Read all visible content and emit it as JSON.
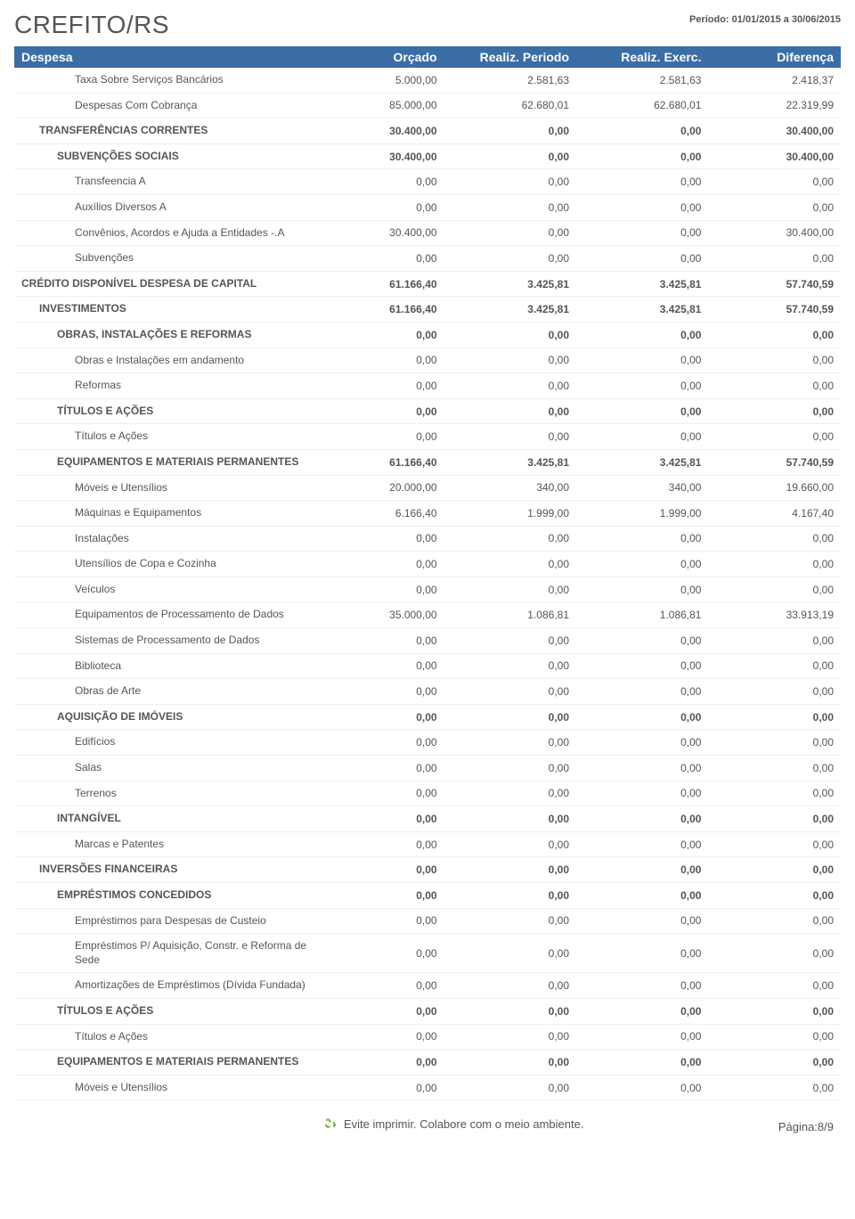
{
  "header": {
    "org": "CREFITO/RS",
    "period": "Período: 01/01/2015 a 30/06/2015"
  },
  "table": {
    "columns": [
      "Despesa",
      "Orçado",
      "Realiz. Periodo",
      "Realiz. Exerc.",
      "Diferença"
    ],
    "rows": [
      {
        "level": 3,
        "label": "Taxa Sobre Serviços Bancários",
        "orc": "5.000,00",
        "per": "2.581,63",
        "exc": "2.581,63",
        "dif": "2.418,37"
      },
      {
        "level": 3,
        "label": "Despesas Com Cobrança",
        "orc": "85.000,00",
        "per": "62.680,01",
        "exc": "62.680,01",
        "dif": "22.319,99"
      },
      {
        "level": 1,
        "label": "TRANSFERÊNCIAS CORRENTES",
        "orc": "30.400,00",
        "per": "0,00",
        "exc": "0,00",
        "dif": "30.400,00"
      },
      {
        "level": 2,
        "label": "SUBVENÇÕES SOCIAIS",
        "orc": "30.400,00",
        "per": "0,00",
        "exc": "0,00",
        "dif": "30.400,00"
      },
      {
        "level": 3,
        "label": "Transfeencia A",
        "orc": "0,00",
        "per": "0,00",
        "exc": "0,00",
        "dif": "0,00"
      },
      {
        "level": 3,
        "label": "Auxílios Diversos A",
        "orc": "0,00",
        "per": "0,00",
        "exc": "0,00",
        "dif": "0,00"
      },
      {
        "level": 3,
        "label": "Convênios, Acordos e Ajuda a Entidades -.A",
        "orc": "30.400,00",
        "per": "0,00",
        "exc": "0,00",
        "dif": "30.400,00"
      },
      {
        "level": 3,
        "label": "Subvenções",
        "orc": "0,00",
        "per": "0,00",
        "exc": "0,00",
        "dif": "0,00"
      },
      {
        "level": 0,
        "label": "CRÉDITO DISPONÍVEL DESPESA DE CAPITAL",
        "orc": "61.166,40",
        "per": "3.425,81",
        "exc": "3.425,81",
        "dif": "57.740,59"
      },
      {
        "level": 1,
        "label": "INVESTIMENTOS",
        "orc": "61.166,40",
        "per": "3.425,81",
        "exc": "3.425,81",
        "dif": "57.740,59"
      },
      {
        "level": 2,
        "label": "OBRAS, INSTALAÇÕES E REFORMAS",
        "orc": "0,00",
        "per": "0,00",
        "exc": "0,00",
        "dif": "0,00"
      },
      {
        "level": 3,
        "label": "Obras e Instalações em andamento",
        "orc": "0,00",
        "per": "0,00",
        "exc": "0,00",
        "dif": "0,00"
      },
      {
        "level": 3,
        "label": "Reformas",
        "orc": "0,00",
        "per": "0,00",
        "exc": "0,00",
        "dif": "0,00"
      },
      {
        "level": 2,
        "label": "TÍTULOS E AÇÕES",
        "orc": "0,00",
        "per": "0,00",
        "exc": "0,00",
        "dif": "0,00"
      },
      {
        "level": 3,
        "label": "Títulos e Ações",
        "orc": "0,00",
        "per": "0,00",
        "exc": "0,00",
        "dif": "0,00"
      },
      {
        "level": 2,
        "label": "EQUIPAMENTOS E MATERIAIS PERMANENTES",
        "orc": "61.166,40",
        "per": "3.425,81",
        "exc": "3.425,81",
        "dif": "57.740,59"
      },
      {
        "level": 3,
        "label": "Móveis e Utensílios",
        "orc": "20.000,00",
        "per": "340,00",
        "exc": "340,00",
        "dif": "19.660,00"
      },
      {
        "level": 3,
        "label": "Máquinas e Equipamentos",
        "orc": "6.166,40",
        "per": "1.999,00",
        "exc": "1.999,00",
        "dif": "4.167,40"
      },
      {
        "level": 3,
        "label": "Instalações",
        "orc": "0,00",
        "per": "0,00",
        "exc": "0,00",
        "dif": "0,00"
      },
      {
        "level": 3,
        "label": "Utensílios de Copa e Cozinha",
        "orc": "0,00",
        "per": "0,00",
        "exc": "0,00",
        "dif": "0,00"
      },
      {
        "level": 3,
        "label": "Veículos",
        "orc": "0,00",
        "per": "0,00",
        "exc": "0,00",
        "dif": "0,00"
      },
      {
        "level": 3,
        "label": "Equipamentos de Processamento de Dados",
        "orc": "35.000,00",
        "per": "1.086,81",
        "exc": "1.086,81",
        "dif": "33.913,19"
      },
      {
        "level": 3,
        "label": "Sistemas de Processamento de Dados",
        "orc": "0,00",
        "per": "0,00",
        "exc": "0,00",
        "dif": "0,00"
      },
      {
        "level": 3,
        "label": "Biblioteca",
        "orc": "0,00",
        "per": "0,00",
        "exc": "0,00",
        "dif": "0,00"
      },
      {
        "level": 3,
        "label": "Obras de Arte",
        "orc": "0,00",
        "per": "0,00",
        "exc": "0,00",
        "dif": "0,00"
      },
      {
        "level": 2,
        "label": "AQUISIÇÃO DE IMÓVEIS",
        "orc": "0,00",
        "per": "0,00",
        "exc": "0,00",
        "dif": "0,00"
      },
      {
        "level": 3,
        "label": "Edifícios",
        "orc": "0,00",
        "per": "0,00",
        "exc": "0,00",
        "dif": "0,00"
      },
      {
        "level": 3,
        "label": "Salas",
        "orc": "0,00",
        "per": "0,00",
        "exc": "0,00",
        "dif": "0,00"
      },
      {
        "level": 3,
        "label": "Terrenos",
        "orc": "0,00",
        "per": "0,00",
        "exc": "0,00",
        "dif": "0,00"
      },
      {
        "level": 2,
        "label": "INTANGÍVEL",
        "orc": "0,00",
        "per": "0,00",
        "exc": "0,00",
        "dif": "0,00"
      },
      {
        "level": 3,
        "label": "Marcas e Patentes",
        "orc": "0,00",
        "per": "0,00",
        "exc": "0,00",
        "dif": "0,00"
      },
      {
        "level": 1,
        "label": "INVERSÕES FINANCEIRAS",
        "orc": "0,00",
        "per": "0,00",
        "exc": "0,00",
        "dif": "0,00"
      },
      {
        "level": 2,
        "label": "EMPRÉSTIMOS CONCEDIDOS",
        "orc": "0,00",
        "per": "0,00",
        "exc": "0,00",
        "dif": "0,00"
      },
      {
        "level": 3,
        "label": "Empréstimos para Despesas de Custeio",
        "orc": "0,00",
        "per": "0,00",
        "exc": "0,00",
        "dif": "0,00"
      },
      {
        "level": 3,
        "label": "Empréstimos P/ Aquisição, Constr. e Reforma de Sede",
        "orc": "0,00",
        "per": "0,00",
        "exc": "0,00",
        "dif": "0,00"
      },
      {
        "level": 3,
        "label": "Amortizações de Empréstimos (Dívida Fundada)",
        "orc": "0,00",
        "per": "0,00",
        "exc": "0,00",
        "dif": "0,00"
      },
      {
        "level": 2,
        "label": "TÍTULOS E AÇÕES",
        "orc": "0,00",
        "per": "0,00",
        "exc": "0,00",
        "dif": "0,00"
      },
      {
        "level": 3,
        "label": "Títulos e Ações",
        "orc": "0,00",
        "per": "0,00",
        "exc": "0,00",
        "dif": "0,00"
      },
      {
        "level": 2,
        "label": "EQUIPAMENTOS E MATERIAIS PERMANENTES",
        "orc": "0,00",
        "per": "0,00",
        "exc": "0,00",
        "dif": "0,00"
      },
      {
        "level": 3,
        "label": "Móveis e Utensílios",
        "orc": "0,00",
        "per": "0,00",
        "exc": "0,00",
        "dif": "0,00"
      }
    ]
  },
  "footer": {
    "message": "Evite imprimir. Colabore com o meio ambiente.",
    "page": "Página:8/9"
  },
  "colors": {
    "header_bg": "#3b6ea5",
    "header_fg": "#ffffff",
    "text": "#555555",
    "row_border": "#eeeeee",
    "recycle_green": "#6db33f"
  }
}
